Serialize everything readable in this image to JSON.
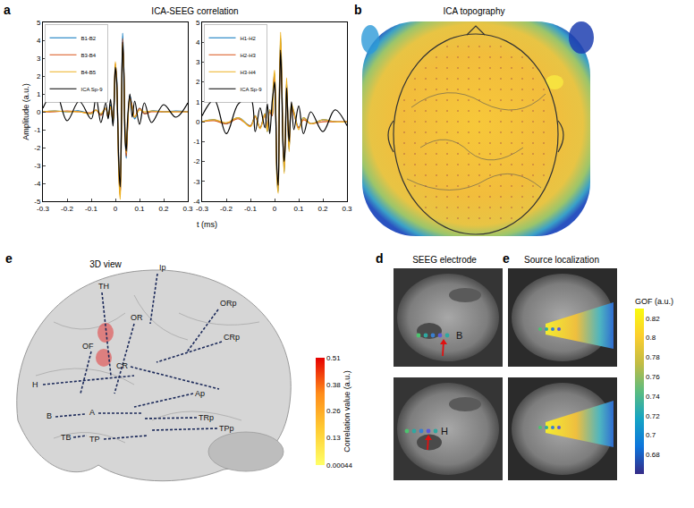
{
  "chart_data": [
    {
      "type": "line",
      "legend": "top-left",
      "grid": false,
      "x": [
        -0.3,
        -0.25,
        -0.2,
        -0.15,
        -0.1,
        -0.08,
        -0.06,
        -0.04,
        -0.03,
        -0.02,
        -0.01,
        -0.005,
        0,
        0.005,
        0.01,
        0.015,
        0.02,
        0.025,
        0.03,
        0.035,
        0.04,
        0.045,
        0.05,
        0.06,
        0.07,
        0.08,
        0.1,
        0.12,
        0.15,
        0.2,
        0.25,
        0.3
      ],
      "xlim": [
        -0.3,
        0.3
      ],
      "xticks": [
        -0.3,
        -0.2,
        -0.1,
        0,
        0.1,
        0.2,
        0.3
      ],
      "ylim": [
        -5,
        5
      ],
      "yticks": [
        -5,
        -4,
        -3,
        -2,
        -1,
        0,
        1,
        2,
        3,
        4,
        5
      ],
      "series": [
        {
          "name": "B1-B2",
          "color": "#0072bd",
          "values": [
            0,
            0.05,
            0,
            0.05,
            -0.1,
            0.1,
            -0.15,
            0.2,
            -0.3,
            0.4,
            -0.6,
            0.5,
            2.6,
            2.0,
            -0.5,
            -3.5,
            -4.6,
            -0.8,
            4.4,
            2.5,
            -1.2,
            -2.6,
            -1.0,
            0.9,
            0.3,
            -0.4,
            0.2,
            -0.1,
            0.05,
            0,
            0.05,
            0
          ]
        },
        {
          "name": "B3-B4",
          "color": "#d95319",
          "values": [
            0,
            0,
            0.05,
            0,
            -0.05,
            0.1,
            -0.2,
            0.2,
            -0.3,
            0.3,
            -0.5,
            0.6,
            2.7,
            1.9,
            -0.6,
            -3.6,
            -4.7,
            -0.9,
            4.1,
            2.4,
            -1.1,
            -2.5,
            -1.1,
            0.8,
            0.3,
            -0.3,
            0.2,
            -0.1,
            0,
            0,
            0,
            0
          ]
        },
        {
          "name": "B4-B5",
          "color": "#edb120",
          "values": [
            0,
            0.05,
            0,
            0,
            -0.1,
            0.1,
            -0.1,
            0.2,
            -0.2,
            0.3,
            -0.5,
            0.7,
            2.8,
            1.8,
            -0.7,
            -3.8,
            -4.9,
            -1.0,
            3.8,
            2.3,
            -1.0,
            -2.3,
            -1.0,
            0.7,
            0.2,
            -0.3,
            0.1,
            0,
            0.05,
            0,
            0,
            0
          ]
        },
        {
          "name": "ICA Sp-9",
          "color": "#000000",
          "values": [
            0.2,
            1.2,
            -0.5,
            0.6,
            -0.4,
            0.8,
            -0.6,
            0.5,
            -0.4,
            0.7,
            -0.8,
            0.6,
            2.5,
            1.8,
            -0.6,
            -3.2,
            -4.2,
            -0.5,
            3.9,
            2.2,
            -1.4,
            -2.2,
            -0.6,
            1.0,
            -0.3,
            0.6,
            -0.7,
            0.5,
            -0.6,
            0.4,
            -0.3,
            0.5
          ]
        }
      ]
    },
    {
      "type": "line",
      "legend": "top-left",
      "grid": false,
      "x": [
        -0.3,
        -0.25,
        -0.2,
        -0.15,
        -0.1,
        -0.08,
        -0.06,
        -0.04,
        -0.03,
        -0.02,
        -0.01,
        -0.005,
        0,
        0.005,
        0.01,
        0.015,
        0.02,
        0.025,
        0.03,
        0.035,
        0.04,
        0.045,
        0.05,
        0.06,
        0.07,
        0.08,
        0.1,
        0.12,
        0.15,
        0.2,
        0.25,
        0.3
      ],
      "xlim": [
        -0.3,
        0.3
      ],
      "xticks": [
        -0.3,
        -0.2,
        -0.1,
        0,
        0.1,
        0.2,
        0.3
      ],
      "ylim": [
        -4,
        5
      ],
      "yticks": [
        -4,
        -3,
        -2,
        -1,
        0,
        1,
        2,
        3,
        4,
        5
      ],
      "series": [
        {
          "name": "H1-H2",
          "color": "#0072bd",
          "values": [
            0,
            0.1,
            -0.1,
            0.2,
            -0.2,
            0.3,
            -0.3,
            0.4,
            -0.5,
            0.6,
            0.3,
            1.8,
            2.4,
            0.5,
            -2.8,
            -3.5,
            1.5,
            4.2,
            2.0,
            -1.0,
            -2.5,
            -0.5,
            2.0,
            -1.4,
            0.8,
            0.5,
            -0.3,
            0.2,
            -0.1,
            0.1,
            0,
            0
          ]
        },
        {
          "name": "H2-H3",
          "color": "#d95319",
          "values": [
            0,
            0.05,
            -0.1,
            0.15,
            -0.2,
            0.25,
            -0.3,
            0.35,
            -0.4,
            0.5,
            0.3,
            1.7,
            2.3,
            0.6,
            -2.6,
            -3.3,
            1.3,
            4.0,
            1.9,
            -0.9,
            -2.3,
            -0.6,
            1.9,
            -1.3,
            0.7,
            0.4,
            -0.3,
            0.1,
            -0.1,
            0,
            0,
            0
          ]
        },
        {
          "name": "H3-H4",
          "color": "#edb120",
          "values": [
            0,
            0.1,
            -0.05,
            0.2,
            -0.25,
            0.3,
            -0.35,
            0.4,
            -0.5,
            0.6,
            0.4,
            1.9,
            2.6,
            0.5,
            -2.9,
            -3.6,
            1.6,
            4.5,
            2.1,
            -1.1,
            -2.6,
            -0.4,
            2.2,
            -1.5,
            0.9,
            0.5,
            -0.4,
            0.2,
            -0.1,
            0.1,
            0,
            0
          ]
        },
        {
          "name": "ICA Sp-9",
          "color": "#000000",
          "values": [
            0.3,
            1.1,
            -0.6,
            0.9,
            1.2,
            -0.5,
            0.7,
            -0.3,
            0.9,
            -0.6,
            1.0,
            1.5,
            2.0,
            0.2,
            -2.4,
            -3.2,
            1.0,
            3.6,
            1.6,
            -1.2,
            -2.0,
            -0.8,
            1.7,
            -1.0,
            1.0,
            -0.4,
            0.8,
            -0.6,
            0.5,
            -0.5,
            0.6,
            -0.2
          ]
        }
      ]
    }
  ],
  "panels": [
    {
      "letter": "a",
      "title": "ICA-SEEG correlation",
      "x_label": "t (ms)",
      "y_label": "Amplitude (a.u.)"
    },
    {
      "letter": "b",
      "title": "ICA topography"
    },
    {
      "letter": "d",
      "title": "SEEG electrode",
      "electrodes": [
        "B",
        "H"
      ]
    },
    {
      "letter": "e",
      "title": "Source localization",
      "colorbar": {
        "title": "GOF (a.u.)",
        "lim": [
          0.66,
          0.83
        ],
        "ticks": [
          0.68,
          0.7,
          0.72,
          0.74,
          0.76,
          0.78,
          0.8,
          0.82
        ],
        "colors": [
          "#352a87",
          "#0d75dc",
          "#15a4c4",
          "#5cbc7f",
          "#c2bc44",
          "#fcce2e",
          "#f9fb0e"
        ]
      }
    },
    {
      "letter": "e",
      "title": "3D view",
      "electrodes": [
        "Ip",
        "TH",
        "ORp",
        "OR",
        "CRp",
        "OF",
        "CR",
        "H",
        "Ap",
        "TRp",
        "TPp",
        "B",
        "A",
        "TB",
        "TP"
      ],
      "colorbar": {
        "title": "Correlation value (a.u.)",
        "lim": [
          0.00044,
          0.51
        ],
        "ticks": [
          0.00044,
          0.13,
          0.26,
          0.38,
          0.51
        ],
        "colors": [
          "#ffff66",
          "#ffcc33",
          "#ff8c1a",
          "#e60000"
        ]
      }
    }
  ]
}
